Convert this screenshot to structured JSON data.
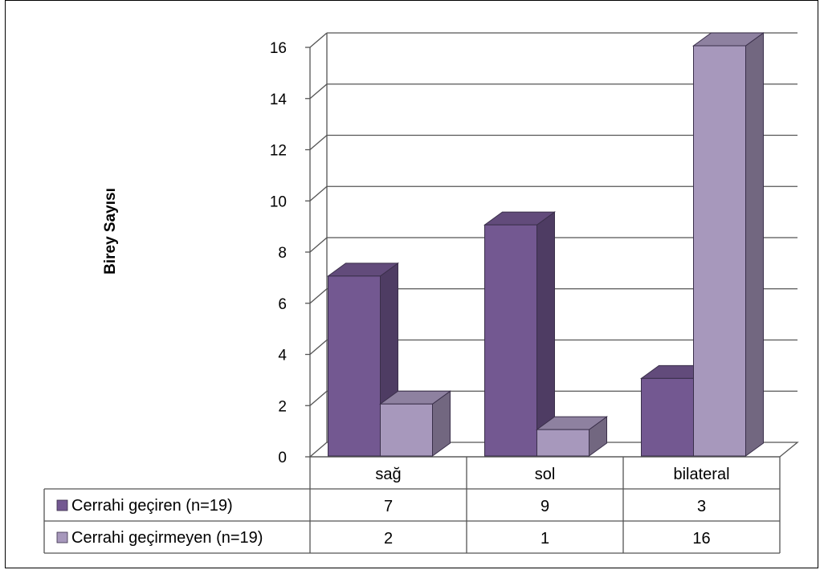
{
  "chart_data": {
    "type": "bar",
    "ylabel": "Birey Sayısı",
    "ylim": [
      0,
      16
    ],
    "yticks": [
      "0",
      "2",
      "4",
      "6",
      "8",
      "10",
      "12",
      "14",
      "16"
    ],
    "categories": [
      "sağ",
      "sol",
      "bilateral"
    ],
    "series": [
      {
        "name": "Cerrahi geçiren (n=19)",
        "values": [
          7,
          9,
          3
        ],
        "value_labels": [
          "7",
          "9",
          "3"
        ],
        "color": "#735891"
      },
      {
        "name": "Cerrahi geçirmeyen (n=19)",
        "values": [
          2,
          1,
          16
        ],
        "value_labels": [
          "2",
          "1",
          "16"
        ],
        "color": "#A798BC"
      }
    ],
    "grid": true,
    "legend": "data-table-left"
  }
}
